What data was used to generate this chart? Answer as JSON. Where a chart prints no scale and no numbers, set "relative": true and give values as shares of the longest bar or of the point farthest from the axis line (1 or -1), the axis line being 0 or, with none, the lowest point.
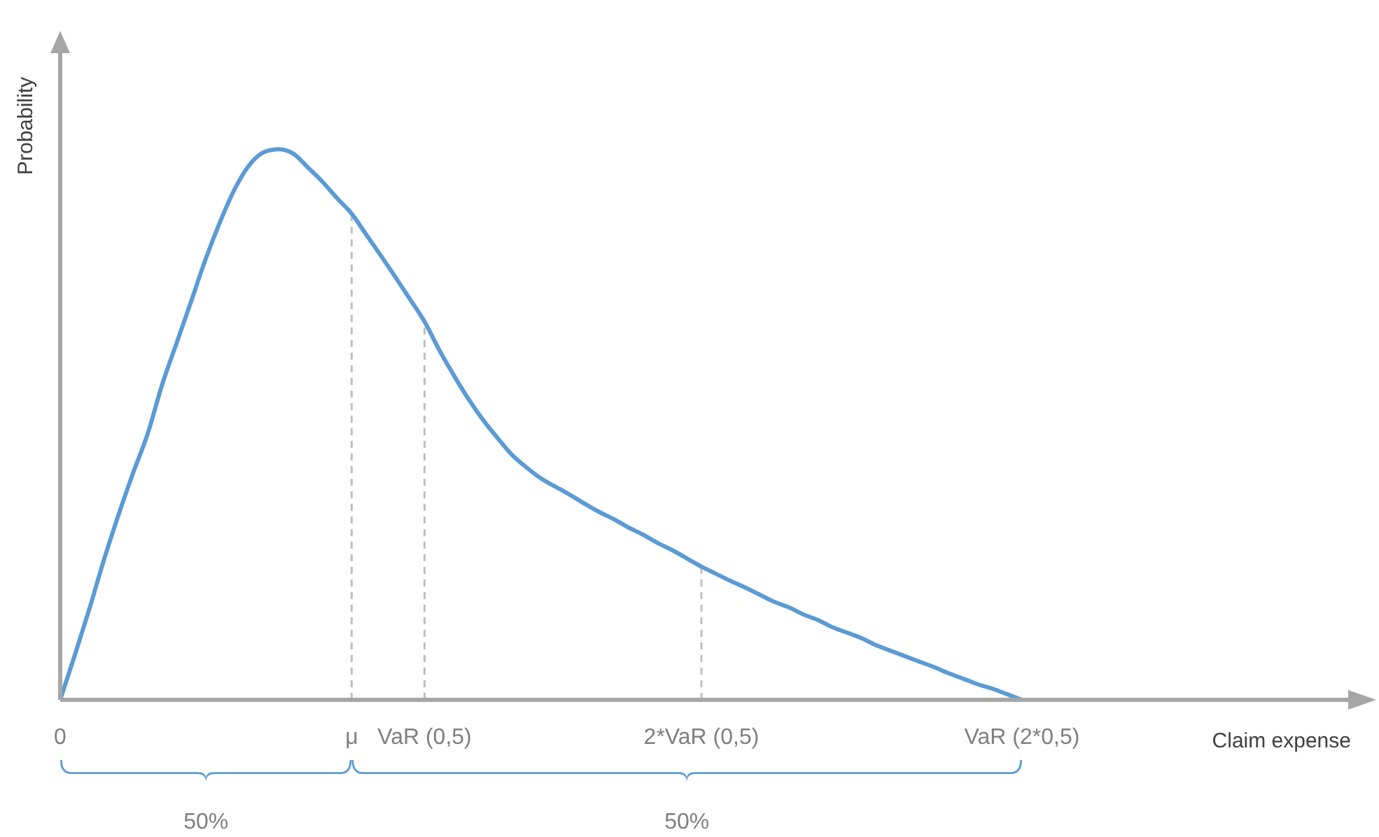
{
  "chart_data": {
    "type": "line",
    "ylabel": "Probability",
    "relative": true,
    "categories": [
      "0",
      null,
      null,
      null,
      null,
      null,
      null,
      null,
      null,
      null,
      null,
      null,
      null,
      null,
      null,
      null,
      null,
      null,
      null,
      null,
      "μ",
      null,
      null,
      null,
      null,
      "VaR (0,5)",
      null,
      null,
      null,
      null,
      null,
      null,
      null,
      null,
      null,
      null,
      null,
      null,
      null,
      null,
      null,
      null,
      null,
      null,
      "2*VaR (0,5)",
      null,
      null,
      null,
      null,
      null,
      null,
      null,
      null,
      null,
      null,
      null,
      null,
      null,
      null,
      null,
      null,
      null,
      null,
      null,
      null,
      null,
      "VaR (2*0,5)"
    ],
    "series": [
      {
        "color": "#5b9bd5",
        "values": [
          0,
          0.081,
          0.165,
          0.254,
          0.336,
          0.412,
          0.483,
          0.573,
          0.649,
          0.725,
          0.802,
          0.87,
          0.929,
          0.972,
          0.995,
          1,
          0.992,
          0.967,
          0.941,
          0.911,
          0.883,
          0.845,
          0.807,
          0.768,
          0.728,
          0.687,
          0.636,
          0.59,
          0.547,
          0.509,
          0.476,
          0.445,
          0.422,
          0.402,
          0.387,
          0.372,
          0.356,
          0.341,
          0.328,
          0.313,
          0.3,
          0.285,
          0.272,
          0.257,
          0.242,
          0.229,
          0.216,
          0.204,
          0.191,
          0.178,
          0.168,
          0.155,
          0.145,
          0.132,
          0.122,
          0.112,
          0.099,
          0.089,
          0.079,
          0.069,
          0.059,
          0.048,
          0.038,
          0.028,
          0.02,
          0.01,
          0
        ]
      }
    ],
    "ref_lines": [
      {
        "axis": "x",
        "value": "μ",
        "color": "#bfbfbf",
        "line_style": "dashed"
      },
      {
        "axis": "x",
        "value": "VaR (0,5)",
        "color": "#bfbfbf",
        "line_style": "dashed"
      },
      {
        "axis": "x",
        "value": "2*VaR (0,5)",
        "color": "#bfbfbf",
        "line_style": "dashed"
      }
    ],
    "annotations": [
      "50%",
      "50%",
      "Claim expense"
    ],
    "grid": false,
    "legend": false,
    "marker": "none",
    "line_style": "solid"
  }
}
